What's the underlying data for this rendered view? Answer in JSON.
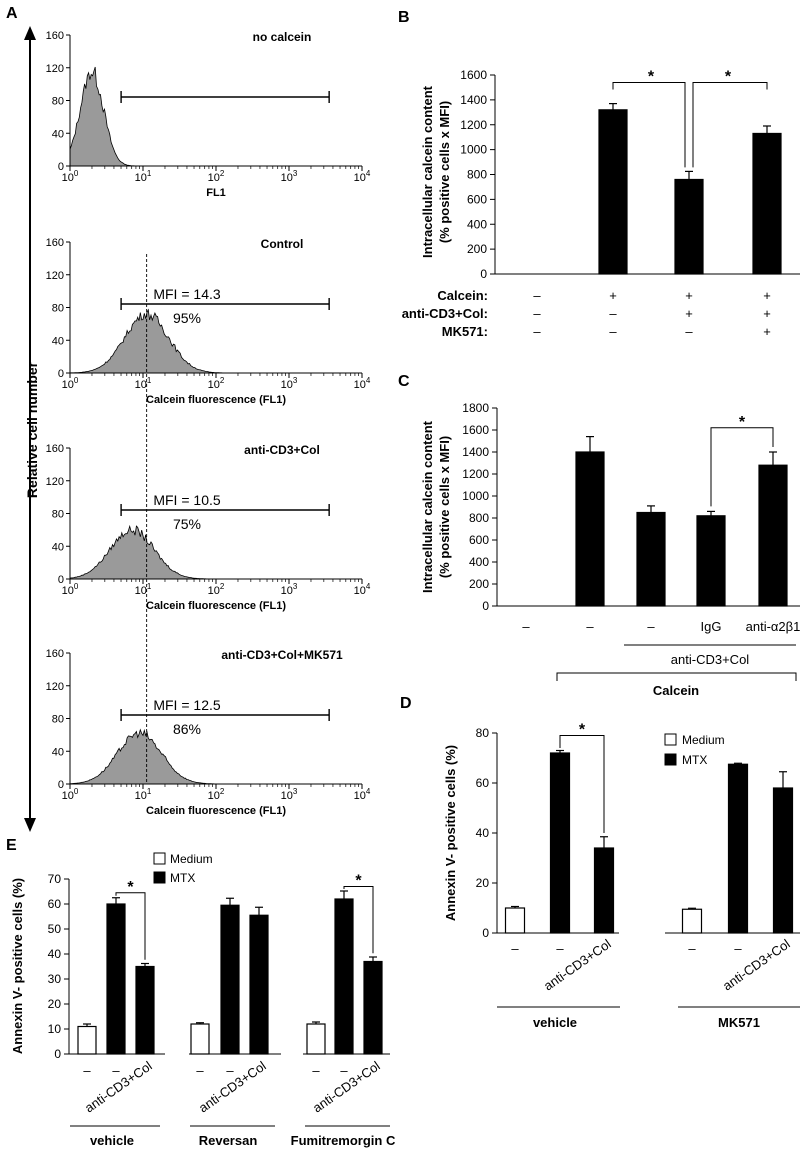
{
  "chart_data": [
    {
      "panel": "A",
      "type": "histogram",
      "ylabel": "Relative cell number",
      "x_ticks": [
        "10",
        "10",
        "10",
        "10",
        "10"
      ],
      "x_tick_exp": [
        "0",
        "1",
        "2",
        "3",
        "4"
      ],
      "y_ticks": [
        "0",
        "40",
        "80",
        "120",
        "160"
      ],
      "ylim": [
        0,
        160
      ],
      "xlim_log10": [
        0,
        4
      ],
      "reference_line_log10": 1.05,
      "subplots": [
        {
          "title": "no calcein",
          "xlabel": "FL1",
          "mfi": "",
          "percent": "",
          "peak_log10": 0.3,
          "peak_height": 115,
          "width": 0.16,
          "gate_log10": [
            0.7,
            3.55
          ]
        },
        {
          "title": "Control",
          "xlabel": "Calcein fluorescence (FL1)",
          "mfi": "MFI = 14.3",
          "percent": "95%",
          "peak_log10": 1.05,
          "peak_height": 72,
          "width": 0.3,
          "gate_log10": [
            0.7,
            3.55
          ]
        },
        {
          "title": "anti-CD3+Col",
          "xlabel": "Calcein fluorescence (FL1)",
          "mfi": "MFI = 10.5",
          "percent": "75%",
          "peak_log10": 0.85,
          "peak_height": 60,
          "width": 0.3,
          "gate_log10": [
            0.7,
            3.55
          ]
        },
        {
          "title": "anti-CD3+Col+MK571",
          "xlabel": "Calcein fluorescence (FL1)",
          "mfi": "MFI = 12.5",
          "percent": "86%",
          "peak_log10": 0.95,
          "peak_height": 62,
          "width": 0.3,
          "gate_log10": [
            0.7,
            3.55
          ]
        }
      ]
    },
    {
      "panel": "B",
      "type": "bar",
      "ylabel": [
        "Intracellular calcein content",
        "(% positive cells x MFI)"
      ],
      "ylim": [
        0,
        1600
      ],
      "y_ticks": [
        "0",
        "200",
        "400",
        "600",
        "800",
        "1000",
        "1200",
        "1400",
        "1600"
      ],
      "values": [
        0,
        1320,
        760,
        1130
      ],
      "errors": [
        0,
        50,
        65,
        60
      ],
      "row_labels": [
        "Calcein:",
        "anti-CD3+Col:",
        "MK571:"
      ],
      "rows": [
        [
          "–",
          "+",
          "+",
          "+"
        ],
        [
          "–",
          "–",
          "+",
          "+"
        ],
        [
          "–",
          "–",
          "–",
          "+"
        ]
      ],
      "significance": "*"
    },
    {
      "panel": "C",
      "type": "bar",
      "ylabel": [
        "Intracellular calcein content",
        "(% positive cells x MFI)"
      ],
      "ylim": [
        0,
        1800
      ],
      "y_ticks": [
        "0",
        "200",
        "400",
        "600",
        "800",
        "1000",
        "1200",
        "1400",
        "1600",
        "1800"
      ],
      "values": [
        0,
        1400,
        850,
        820,
        1280
      ],
      "errors": [
        0,
        140,
        60,
        40,
        120
      ],
      "categories": [
        "–",
        "–",
        "–",
        "IgG",
        "anti-α2β1"
      ],
      "group1": "anti-CD3+Col",
      "group2": "Calcein",
      "significance": "*"
    },
    {
      "panel": "D",
      "type": "bar",
      "ylabel": "Annexin V- positive cells (%)",
      "ylim": [
        0,
        80
      ],
      "y_ticks": [
        "0",
        "20",
        "40",
        "60",
        "80"
      ],
      "legend": [
        "Medium",
        "MTX"
      ],
      "series_by_bar": [
        "Medium",
        "MTX",
        "MTX",
        "Medium",
        "MTX",
        "MTX"
      ],
      "values": [
        10,
        72,
        34,
        9.5,
        67.5,
        58
      ],
      "errors": [
        0.6,
        1,
        4.5,
        0.4,
        0.4,
        6.5
      ],
      "tick_labels": [
        "–",
        "–",
        "anti-CD3+Col",
        "–",
        "–",
        "anti-CD3+Col"
      ],
      "groups": [
        "vehicle",
        "MK571"
      ],
      "significance": "*"
    },
    {
      "panel": "E",
      "type": "bar",
      "ylabel": "Annexin V- positive cells (%)",
      "ylim": [
        0,
        70
      ],
      "y_ticks": [
        "0",
        "10",
        "20",
        "30",
        "40",
        "50",
        "60",
        "70"
      ],
      "legend": [
        "Medium",
        "MTX"
      ],
      "series_by_bar": [
        "Medium",
        "MTX",
        "MTX",
        "Medium",
        "MTX",
        "MTX",
        "Medium",
        "MTX",
        "MTX"
      ],
      "values": [
        11,
        60,
        35,
        12,
        59.5,
        55.5,
        12,
        62,
        37
      ],
      "errors": [
        1,
        2.5,
        1.2,
        0.5,
        2.8,
        3.2,
        0.8,
        3.2,
        1.8
      ],
      "tick_labels": [
        "–",
        "–",
        "anti-CD3+Col",
        "–",
        "–",
        "anti-CD3+Col",
        "–",
        "–",
        "anti-CD3+Col"
      ],
      "groups": [
        "vehicle",
        "Reversan",
        "Fumitremorgin C"
      ],
      "significance": "*"
    }
  ],
  "colors": {
    "bar_mtx": "#000000",
    "bar_medium": "#ffffff",
    "histogram_fill": "#9a9a9a"
  }
}
